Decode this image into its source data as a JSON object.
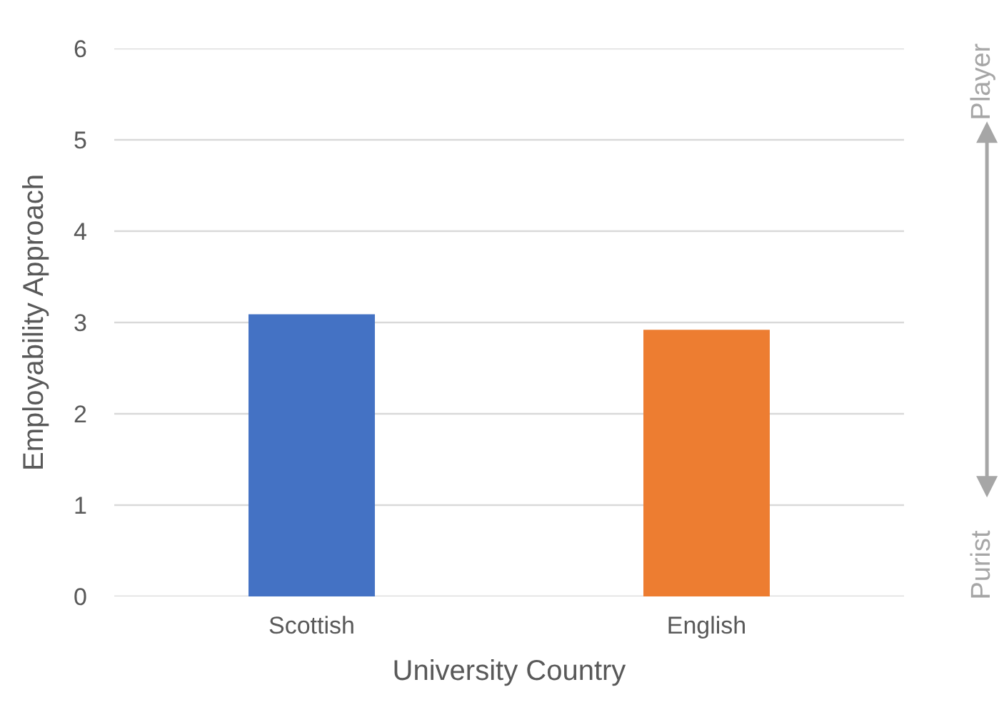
{
  "chart_data": {
    "type": "bar",
    "xlabel": "University Country",
    "ylabel": "Employability Approach",
    "categories": [
      "Scottish",
      "English"
    ],
    "values": [
      3.09,
      2.92
    ],
    "colors": [
      "#4472c4",
      "#ed7d31"
    ],
    "ylim": [
      0,
      6
    ],
    "yticks": [
      0,
      1,
      2,
      3,
      4,
      5,
      6
    ],
    "grid": "y",
    "annotations": [
      "Player",
      "Purist"
    ]
  }
}
